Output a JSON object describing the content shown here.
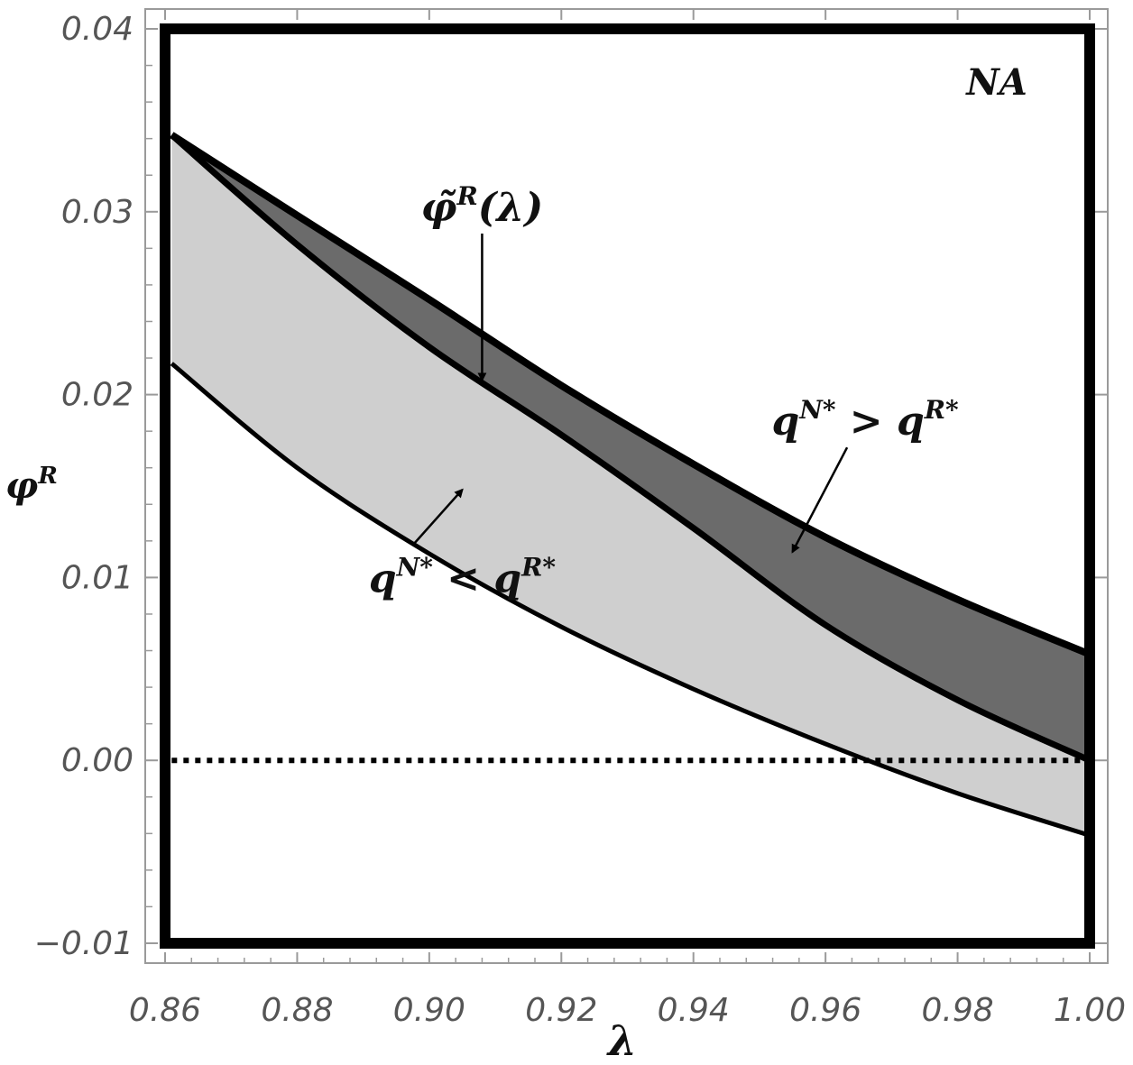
{
  "chart_data": {
    "type": "area",
    "xlabel": "λ",
    "ylabel": "φ",
    "ylabel_sup": "R",
    "xlim": [
      0.86,
      1.0
    ],
    "ylim": [
      -0.01,
      0.04
    ],
    "xticks": [
      0.86,
      0.88,
      0.9,
      0.92,
      0.94,
      0.96,
      0.98,
      1.0
    ],
    "xtick_labels": [
      "0.86",
      "0.88",
      "0.90",
      "0.92",
      "0.94",
      "0.96",
      "0.98",
      "1.00"
    ],
    "yticks": [
      -0.01,
      0.0,
      0.01,
      0.02,
      0.03,
      0.04
    ],
    "ytick_labels": [
      "−0.01",
      "0.00",
      "0.01",
      "0.02",
      "0.03",
      "0.04"
    ],
    "grid": false,
    "region_label": "NA",
    "colors": {
      "dark_region": "#6b6b6b",
      "light_region": "#cfcfcf",
      "lines": "#000000",
      "ticks": "#555555"
    },
    "series": [
      {
        "role": "upper-boundary",
        "x": [
          0.861,
          0.88,
          0.9,
          0.92,
          0.94,
          0.96,
          0.98,
          1.0
        ],
        "values": [
          0.0342,
          0.0298,
          0.0252,
          0.0205,
          0.0162,
          0.0122,
          0.0088,
          0.0058
        ]
      },
      {
        "role": "tilde-phi",
        "x": [
          0.861,
          0.88,
          0.9,
          0.92,
          0.94,
          0.96,
          0.98,
          1.0
        ],
        "values": [
          0.0342,
          0.0282,
          0.0226,
          0.0178,
          0.0127,
          0.0074,
          0.0033,
          0.0
        ]
      },
      {
        "role": "lower-boundary",
        "x": [
          0.861,
          0.88,
          0.9,
          0.92,
          0.94,
          0.96,
          0.98,
          1.0
        ],
        "values": [
          0.0217,
          0.016,
          0.0113,
          0.0073,
          0.0039,
          0.0009,
          -0.0018,
          -0.0041
        ]
      },
      {
        "role": "zero-line",
        "x": [
          0.861,
          1.0
        ],
        "values": [
          0.0,
          0.0
        ]
      }
    ],
    "annotations": [
      {
        "base": "φ̃",
        "sup": "R",
        "tail": "(λ)",
        "x": 0.908,
        "y": 0.0295,
        "arrow_to": [
          0.908,
          0.0208
        ]
      },
      {
        "base": "q",
        "sup": "N*",
        "mid": " > q",
        "sup2": "R*",
        "x": 0.966,
        "y": 0.0178,
        "arrow_to": [
          0.955,
          0.0114
        ]
      },
      {
        "base": "q",
        "sup": "N*",
        "mid": " < q",
        "sup2": "R*",
        "x": 0.905,
        "y": 0.0092,
        "arrow_to": [
          0.905,
          0.0148
        ]
      }
    ]
  }
}
